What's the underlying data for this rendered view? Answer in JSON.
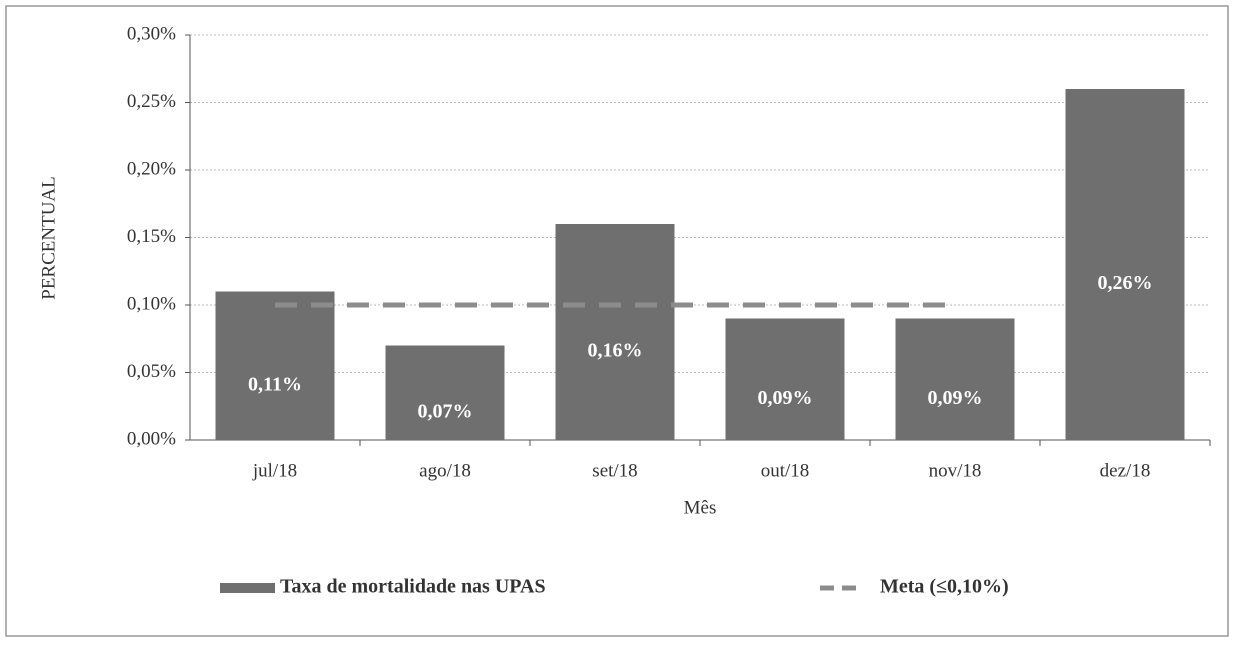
{
  "chart_data": {
    "type": "bar",
    "x_label": "Mês",
    "y_label": "PERCENTUAL",
    "categories": [
      "jul/18",
      "ago/18",
      "set/18",
      "out/18",
      "nov/18",
      "dez/18"
    ],
    "series": [
      {
        "name": "Taxa de mortalidade nas UPAS",
        "type": "bar",
        "color": "#6f6f6f",
        "values": [
          0.11,
          0.07,
          0.16,
          0.09,
          0.09,
          0.26
        ],
        "value_labels": [
          "0,11%",
          "0,07%",
          "0,16%",
          "0,09%",
          "0,09%",
          "0,26%"
        ]
      },
      {
        "name": "Meta (≤0,10%)",
        "type": "line",
        "color": "#8c8c8c",
        "values": [
          0.1,
          0.1,
          0.1,
          0.1,
          0.1,
          null
        ]
      }
    ],
    "ylim": [
      0,
      0.3
    ],
    "yticks": [
      {
        "value": 0,
        "label": "0,00%"
      },
      {
        "value": 0.05,
        "label": "0,05%"
      },
      {
        "value": 0.1,
        "label": "0,10%"
      },
      {
        "value": 0.15,
        "label": "0,15%"
      },
      {
        "value": 0.2,
        "label": "0,20%"
      },
      {
        "value": 0.25,
        "label": "0,25%"
      },
      {
        "value": 0.3,
        "label": "0,30%"
      }
    ],
    "grid": true,
    "legend": "bottom"
  }
}
